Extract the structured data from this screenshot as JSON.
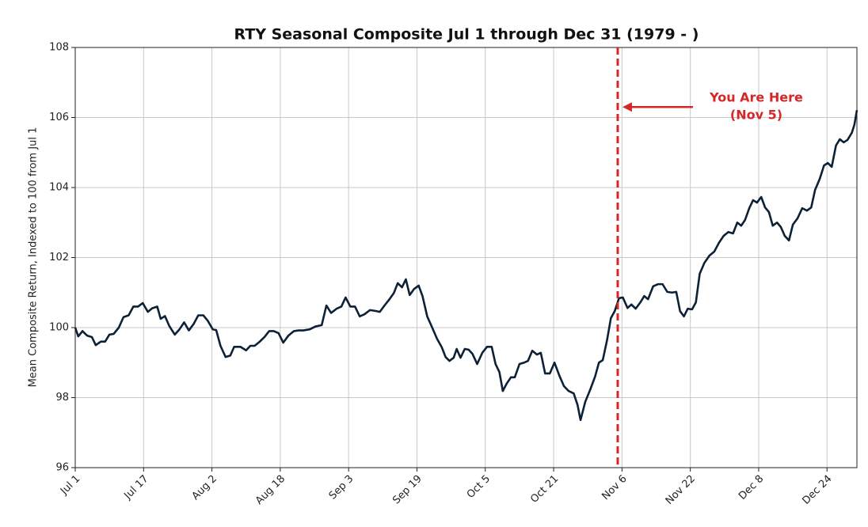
{
  "chart_data": {
    "type": "line",
    "title": "RTY Seasonal Composite Jul 1 through Dec 31 (1979 - )",
    "y_label": "Mean Composite Return, Indexed to 100 from Jul 1",
    "x": [
      0,
      0.7,
      1.7,
      2.8,
      3.9,
      4.8,
      6,
      7,
      8,
      9,
      10.2,
      11.3,
      12.5,
      13.6,
      14.7,
      15.8,
      17,
      18,
      19.2,
      20,
      21,
      22,
      23.3,
      24.4,
      25.5,
      26.6,
      27.7,
      28.8,
      30,
      31,
      32.2,
      33,
      34,
      35.2,
      36.3,
      37.2,
      38.7,
      40,
      41,
      42,
      43.2,
      44.3,
      45.4,
      46.5,
      47.6,
      48.7,
      49.9,
      51.2,
      52.3,
      53.4,
      54.9,
      56.2,
      57.7,
      58.8,
      59.9,
      61.2,
      62.3,
      63.3,
      64.4,
      65.5,
      66.6,
      67.7,
      69,
      70.1,
      71.3,
      72.4,
      73.5,
      74.6,
      75.5,
      76.5,
      77.4,
      78.3,
      79.3,
      80.4,
      81.3,
      82.4,
      83.5,
      84.7,
      85.8,
      86.7,
      87.6,
      88.6,
      89.3,
      90.2,
      91.2,
      92.1,
      93,
      94.1,
      95.3,
      96.4,
      97.5,
      98.4,
      99.3,
      100.1,
      101,
      102,
      102.9,
      104,
      105.1,
      106,
      107,
      108.1,
      109,
      110,
      111.1,
      112.2,
      113.3,
      114.4,
      115.5,
      116.7,
      117.6,
      118.3,
      119.4,
      120.6,
      121.7,
      122.6,
      123.5,
      124.5,
      125.4,
      126.3,
      127.3,
      128.2,
      129.3,
      130.2,
      131.2,
      132.3,
      133.2,
      134.1,
      135.3,
      136.4,
      137.5,
      138.6,
      139.7,
      140.7,
      141.6,
      142.5,
      143.4,
      144.4,
      145.3,
      146.2,
      147.3,
      148.5,
      149.6,
      150.7,
      151.8,
      152.9,
      154,
      155,
      155.9,
      156.8,
      157.8,
      158.7,
      159.6,
      160.6,
      161.5,
      162.4,
      163.3,
      164.3,
      165.2,
      166.1,
      167.1,
      168,
      169.1,
      170.2,
      171.3,
      172.3,
      173.2,
      174.3,
      175.3,
      176.2,
      177.1,
      178.1,
      179,
      179.9,
      180.8,
      181.8,
      182.4,
      183
    ],
    "series": [
      {
        "name": "RTY",
        "color": "#0d2136",
        "values": [
          100.0,
          99.75,
          99.9,
          99.77,
          99.73,
          99.5,
          99.6,
          99.6,
          99.8,
          99.82,
          100.0,
          100.3,
          100.35,
          100.6,
          100.6,
          100.7,
          100.45,
          100.55,
          100.6,
          100.25,
          100.33,
          100.05,
          99.8,
          99.95,
          100.15,
          99.92,
          100.1,
          100.35,
          100.35,
          100.2,
          99.95,
          99.93,
          99.48,
          99.16,
          99.2,
          99.45,
          99.45,
          99.35,
          99.48,
          99.48,
          99.6,
          99.73,
          99.9,
          99.9,
          99.84,
          99.57,
          99.77,
          99.9,
          99.92,
          99.92,
          99.95,
          100.03,
          100.07,
          100.63,
          100.42,
          100.54,
          100.6,
          100.86,
          100.6,
          100.6,
          100.32,
          100.38,
          100.5,
          100.48,
          100.45,
          100.63,
          100.8,
          100.99,
          101.27,
          101.15,
          101.38,
          100.93,
          101.1,
          101.2,
          100.9,
          100.32,
          100.02,
          99.68,
          99.44,
          99.16,
          99.05,
          99.14,
          99.39,
          99.14,
          99.39,
          99.37,
          99.25,
          98.96,
          99.28,
          99.45,
          99.45,
          98.96,
          98.73,
          98.19,
          98.4,
          98.58,
          98.58,
          98.96,
          99.0,
          99.05,
          99.34,
          99.23,
          99.28,
          98.69,
          98.69,
          99.0,
          98.64,
          98.33,
          98.19,
          98.12,
          97.79,
          97.36,
          97.88,
          98.24,
          98.6,
          99.0,
          99.07,
          99.64,
          100.27,
          100.47,
          100.84,
          100.86,
          100.56,
          100.66,
          100.54,
          100.72,
          100.9,
          100.81,
          101.18,
          101.24,
          101.24,
          101.02,
          101.0,
          101.02,
          100.47,
          100.32,
          100.54,
          100.52,
          100.72,
          101.54,
          101.85,
          102.06,
          102.17,
          102.42,
          102.62,
          102.73,
          102.69,
          103.0,
          102.91,
          103.07,
          103.41,
          103.64,
          103.57,
          103.73,
          103.43,
          103.3,
          102.91,
          103.0,
          102.87,
          102.62,
          102.49,
          102.94,
          103.12,
          103.41,
          103.34,
          103.43,
          103.93,
          104.25,
          104.63,
          104.7,
          104.59,
          105.2,
          105.38,
          105.29,
          105.36,
          105.56,
          105.79,
          106.21
        ]
      }
    ],
    "xlim": [
      0,
      183
    ],
    "xticks": [
      {
        "value": 0,
        "label": "Jul 1"
      },
      {
        "value": 16,
        "label": "Jul 17"
      },
      {
        "value": 32,
        "label": "Aug 2"
      },
      {
        "value": 48,
        "label": "Aug 18"
      },
      {
        "value": 64,
        "label": "Sep 3"
      },
      {
        "value": 80,
        "label": "Sep 19"
      },
      {
        "value": 96,
        "label": "Oct 5"
      },
      {
        "value": 112,
        "label": "Oct 21"
      },
      {
        "value": 128,
        "label": "Nov 6"
      },
      {
        "value": 144,
        "label": "Nov 22"
      },
      {
        "value": 160,
        "label": "Dec 8"
      },
      {
        "value": 176,
        "label": "Dec 24"
      }
    ],
    "ylim": [
      96,
      108
    ],
    "yticks": [
      96,
      98,
      100,
      102,
      104,
      106,
      108
    ],
    "grid": true,
    "marker_line": {
      "x": 127,
      "color": "#d62728"
    },
    "annotation": {
      "lines": [
        "You Are Here",
        "(Nov 5)"
      ],
      "y": 106.3,
      "color": "#d62728"
    }
  }
}
